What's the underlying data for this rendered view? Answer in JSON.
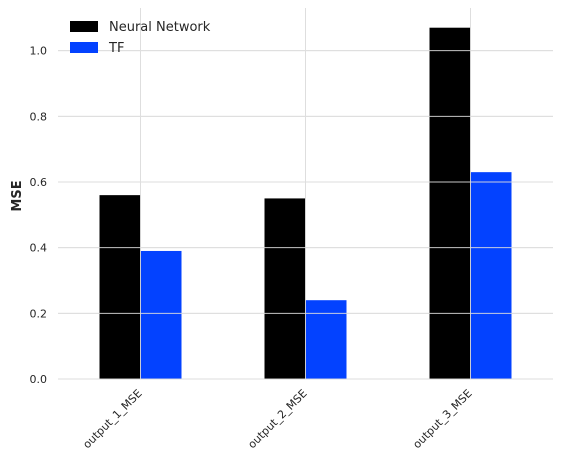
{
  "chart_data": {
    "type": "bar",
    "categories": [
      "output_1_MSE",
      "output_2_MSE",
      "output_3_MSE"
    ],
    "series": [
      {
        "name": "Neural Network",
        "values": [
          0.56,
          0.55,
          1.07
        ],
        "color": "#000000"
      },
      {
        "name": "TF",
        "values": [
          0.39,
          0.24,
          0.63
        ],
        "color": "#0342ff"
      }
    ],
    "xlabel": "",
    "ylabel": "MSE",
    "ylim": [
      0,
      1.13
    ],
    "yticks": [
      "0.0",
      "0.2",
      "0.4",
      "0.6",
      "0.8",
      "1.0"
    ],
    "grid": true,
    "legend_position": "top-left"
  }
}
